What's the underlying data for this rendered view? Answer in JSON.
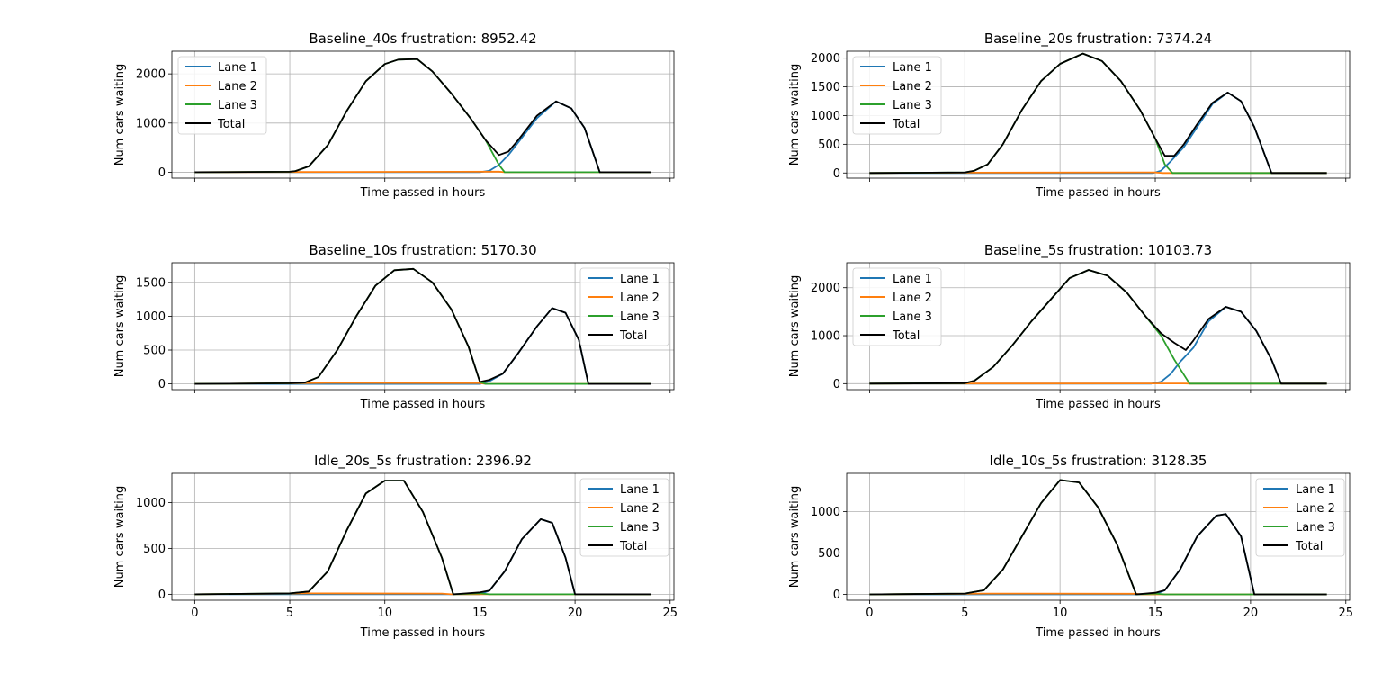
{
  "chart_data": [
    {
      "type": "line",
      "title": "Baseline_40s frustration: 8952.42",
      "xlabel": "Time passed in hours",
      "ylabel": "Num cars waiting",
      "xlim": [
        -1.2,
        25.2
      ],
      "ylim": [
        -120,
        2460
      ],
      "x_ticks": [
        0,
        5,
        10,
        15,
        20,
        25
      ],
      "y_ticks": [
        0,
        1000,
        2000
      ],
      "y_tick_labels": [
        "0",
        "1000",
        "2000"
      ],
      "show_x_tick_labels": false,
      "grid": true,
      "legend_position": "upper left",
      "series": [
        {
          "name": "Lane 1",
          "color": "#1f77b4",
          "x": [
            0,
            15,
            15.5,
            16,
            16.5,
            17,
            18,
            19,
            19.8,
            20.5,
            21.3,
            24
          ],
          "y": [
            0,
            0,
            30,
            150,
            350,
            600,
            1100,
            1440,
            1300,
            900,
            0,
            0
          ]
        },
        {
          "name": "Lane 2",
          "color": "#ff7f0e",
          "x": [
            0,
            5,
            16,
            16.3,
            24
          ],
          "y": [
            0,
            5,
            12,
            0,
            0
          ]
        },
        {
          "name": "Lane 3",
          "color": "#2ca02c",
          "x": [
            0,
            5,
            5.3,
            6,
            7,
            8,
            9,
            10,
            10.7,
            11.7,
            12.5,
            13.5,
            14.5,
            15.3,
            16,
            16.3,
            24
          ],
          "y": [
            0,
            10,
            25,
            120,
            550,
            1250,
            1850,
            2200,
            2290,
            2300,
            2050,
            1600,
            1100,
            650,
            150,
            0,
            0
          ]
        },
        {
          "name": "Total",
          "color": "#000000",
          "x": [
            0,
            5,
            5.3,
            6,
            7,
            8,
            9,
            10,
            10.7,
            11.7,
            12.5,
            13.5,
            14.5,
            15.3,
            16,
            16.5,
            17,
            18,
            19,
            19.8,
            20.5,
            21.3,
            24
          ],
          "y": [
            0,
            10,
            25,
            120,
            550,
            1250,
            1850,
            2200,
            2290,
            2300,
            2050,
            1600,
            1100,
            650,
            350,
            420,
            650,
            1150,
            1440,
            1300,
            900,
            0,
            0
          ]
        }
      ]
    },
    {
      "type": "line",
      "title": "Baseline_20s frustration: 7374.24",
      "xlabel": "Time passed in hours",
      "ylabel": "Num cars waiting",
      "xlim": [
        -1.2,
        25.2
      ],
      "ylim": [
        -90,
        2120
      ],
      "x_ticks": [
        0,
        5,
        10,
        15,
        20,
        25
      ],
      "y_ticks": [
        0,
        500,
        1000,
        1500,
        2000
      ],
      "y_tick_labels": [
        "0",
        "500",
        "1000",
        "1500",
        "2000"
      ],
      "show_x_tick_labels": false,
      "grid": true,
      "legend_position": "upper left",
      "series": [
        {
          "name": "Lane 1",
          "color": "#1f77b4",
          "x": [
            0,
            14.9,
            15.3,
            15.8,
            16.5,
            17.2,
            18,
            18.8,
            19.5,
            20.2,
            21.1,
            24
          ],
          "y": [
            0,
            0,
            40,
            200,
            450,
            800,
            1200,
            1400,
            1250,
            800,
            0,
            0
          ]
        },
        {
          "name": "Lane 2",
          "color": "#ff7f0e",
          "x": [
            0,
            5,
            15,
            15.4,
            24
          ],
          "y": [
            0,
            5,
            10,
            0,
            0
          ]
        },
        {
          "name": "Lane 3",
          "color": "#2ca02c",
          "x": [
            0,
            5,
            5.5,
            6.2,
            7,
            8,
            9,
            10,
            11.2,
            12.2,
            13.2,
            14.2,
            15,
            15.5,
            15.9,
            24
          ],
          "y": [
            0,
            10,
            40,
            150,
            500,
            1100,
            1600,
            1900,
            2080,
            1950,
            1600,
            1100,
            600,
            150,
            0,
            0
          ]
        },
        {
          "name": "Total",
          "color": "#000000",
          "x": [
            0,
            5,
            5.5,
            6.2,
            7,
            8,
            9,
            10,
            11.2,
            12.2,
            13.2,
            14.2,
            15,
            15.5,
            16,
            16.5,
            17.2,
            18,
            18.8,
            19.5,
            20.2,
            21.1,
            24
          ],
          "y": [
            0,
            10,
            40,
            150,
            500,
            1100,
            1600,
            1900,
            2080,
            1950,
            1600,
            1100,
            600,
            300,
            300,
            500,
            850,
            1220,
            1400,
            1250,
            800,
            0,
            0
          ]
        }
      ]
    },
    {
      "type": "line",
      "title": "Baseline_10s frustration: 5170.30",
      "xlabel": "Time passed in hours",
      "ylabel": "Num cars waiting",
      "xlim": [
        -1.2,
        25.2
      ],
      "ylim": [
        -85,
        1790
      ],
      "x_ticks": [
        0,
        5,
        10,
        15,
        20,
        25
      ],
      "y_ticks": [
        0,
        500,
        1000,
        1500
      ],
      "y_tick_labels": [
        "0",
        "500",
        "1000",
        "1500"
      ],
      "show_x_tick_labels": false,
      "grid": true,
      "legend_position": "upper right",
      "series": [
        {
          "name": "Lane 1",
          "color": "#1f77b4",
          "x": [
            0,
            15,
            15.5,
            16.2,
            17,
            18,
            18.8,
            19.5,
            20.2,
            20.7,
            24
          ],
          "y": [
            0,
            0,
            40,
            150,
            450,
            850,
            1120,
            1050,
            650,
            0,
            0
          ]
        },
        {
          "name": "Lane 2",
          "color": "#ff7f0e",
          "x": [
            0,
            5,
            7,
            15,
            15.3,
            24
          ],
          "y": [
            0,
            8,
            15,
            12,
            0,
            0
          ]
        },
        {
          "name": "Lane 3",
          "color": "#2ca02c",
          "x": [
            0,
            5,
            5.8,
            6.5,
            7.5,
            8.5,
            9.5,
            10.5,
            11.5,
            12.5,
            13.5,
            14.4,
            15,
            15.3,
            24
          ],
          "y": [
            0,
            10,
            20,
            100,
            500,
            1000,
            1450,
            1680,
            1700,
            1500,
            1100,
            550,
            30,
            0,
            0
          ]
        },
        {
          "name": "Total",
          "color": "#000000",
          "x": [
            0,
            5,
            5.8,
            6.5,
            7.5,
            8.5,
            9.5,
            10.5,
            11.5,
            12.5,
            13.5,
            14.4,
            15,
            15.5,
            16.2,
            17,
            18,
            18.8,
            19.5,
            20.2,
            20.7,
            24
          ],
          "y": [
            0,
            10,
            20,
            100,
            500,
            1000,
            1450,
            1680,
            1700,
            1500,
            1100,
            550,
            30,
            60,
            150,
            450,
            850,
            1120,
            1050,
            650,
            0,
            0
          ]
        }
      ]
    },
    {
      "type": "line",
      "title": "Baseline_5s frustration: 10103.73",
      "xlabel": "Time passed in hours",
      "ylabel": "Num cars waiting",
      "xlim": [
        -1.2,
        25.2
      ],
      "ylim": [
        -125,
        2520
      ],
      "x_ticks": [
        0,
        5,
        10,
        15,
        20,
        25
      ],
      "y_ticks": [
        0,
        1000,
        2000
      ],
      "y_tick_labels": [
        "0",
        "1000",
        "2000"
      ],
      "show_x_tick_labels": false,
      "grid": true,
      "legend_position": "upper left",
      "series": [
        {
          "name": "Lane 1",
          "color": "#1f77b4",
          "x": [
            0,
            14.8,
            15.3,
            15.8,
            16.3,
            17,
            17.8,
            18.7,
            19.5,
            20.3,
            21.1,
            21.6,
            24
          ],
          "y": [
            0,
            0,
            40,
            200,
            450,
            750,
            1300,
            1600,
            1500,
            1100,
            500,
            0,
            0
          ]
        },
        {
          "name": "Lane 2",
          "color": "#ff7f0e",
          "x": [
            0,
            5,
            15,
            16.5,
            16.9,
            24
          ],
          "y": [
            0,
            3,
            5,
            5,
            0,
            0
          ]
        },
        {
          "name": "Lane 3",
          "color": "#2ca02c",
          "x": [
            0,
            5,
            5.5,
            6.5,
            7.5,
            8.5,
            9.5,
            10.5,
            11.5,
            12.5,
            13.5,
            14.5,
            15.3,
            16,
            16.8,
            24
          ],
          "y": [
            0,
            10,
            60,
            350,
            800,
            1300,
            1750,
            2200,
            2370,
            2250,
            1900,
            1400,
            1000,
            500,
            0,
            0
          ]
        },
        {
          "name": "Total",
          "color": "#000000",
          "x": [
            0,
            5,
            5.5,
            6.5,
            7.5,
            8.5,
            9.5,
            10.5,
            11.5,
            12.5,
            13.5,
            14.5,
            15.3,
            16,
            16.6,
            17,
            17.8,
            18.7,
            19.5,
            20.3,
            21.1,
            21.6,
            24
          ],
          "y": [
            0,
            10,
            60,
            350,
            800,
            1300,
            1750,
            2200,
            2370,
            2250,
            1900,
            1400,
            1050,
            850,
            700,
            900,
            1350,
            1600,
            1500,
            1100,
            500,
            0,
            0
          ]
        }
      ]
    },
    {
      "type": "line",
      "title": "Idle_20s_5s frustration: 2396.92",
      "xlabel": "Time passed in hours",
      "ylabel": "Num cars waiting",
      "xlim": [
        -1.2,
        25.2
      ],
      "ylim": [
        -65,
        1320
      ],
      "x_ticks": [
        0,
        5,
        10,
        15,
        20,
        25
      ],
      "x_tick_labels": [
        "0",
        "5",
        "10",
        "15",
        "20",
        "25"
      ],
      "y_ticks": [
        0,
        500,
        1000
      ],
      "y_tick_labels": [
        "0",
        "500",
        "1000"
      ],
      "show_x_tick_labels": true,
      "grid": true,
      "legend_position": "upper right",
      "series": [
        {
          "name": "Lane 1",
          "color": "#1f77b4",
          "x": [
            0,
            15,
            15.5,
            16.3,
            17.2,
            18.2,
            18.8,
            19.5,
            20,
            24
          ],
          "y": [
            0,
            0,
            40,
            250,
            600,
            820,
            780,
            400,
            0,
            0
          ]
        },
        {
          "name": "Lane 2",
          "color": "#ff7f0e",
          "x": [
            0,
            5,
            6,
            13,
            13.5,
            24
          ],
          "y": [
            0,
            8,
            10,
            8,
            0,
            0
          ]
        },
        {
          "name": "Lane 3",
          "color": "#2ca02c",
          "x": [
            0,
            5,
            6,
            7,
            8,
            9,
            10,
            11,
            12,
            13,
            13.6,
            15,
            15.5,
            24
          ],
          "y": [
            0,
            10,
            30,
            250,
            700,
            1100,
            1240,
            1240,
            900,
            400,
            0,
            10,
            0,
            0
          ]
        },
        {
          "name": "Total",
          "color": "#000000",
          "x": [
            0,
            5,
            6,
            7,
            8,
            9,
            10,
            11,
            12,
            13,
            13.6,
            15,
            15.5,
            16.3,
            17.2,
            18.2,
            18.8,
            19.5,
            20,
            24
          ],
          "y": [
            0,
            10,
            30,
            250,
            700,
            1100,
            1240,
            1240,
            900,
            400,
            0,
            20,
            40,
            250,
            600,
            820,
            780,
            400,
            0,
            0
          ]
        }
      ]
    },
    {
      "type": "line",
      "title": "Idle_10s_5s frustration: 3128.35",
      "xlabel": "Time passed in hours",
      "ylabel": "Num cars waiting",
      "xlim": [
        -1.2,
        25.2
      ],
      "ylim": [
        -70,
        1460
      ],
      "x_ticks": [
        0,
        5,
        10,
        15,
        20,
        25
      ],
      "x_tick_labels": [
        "0",
        "5",
        "10",
        "15",
        "20",
        "25"
      ],
      "y_ticks": [
        0,
        500,
        1000
      ],
      "y_tick_labels": [
        "0",
        "500",
        "1000"
      ],
      "show_x_tick_labels": true,
      "grid": true,
      "legend_position": "upper right",
      "series": [
        {
          "name": "Lane 1",
          "color": "#1f77b4",
          "x": [
            0,
            15,
            15.5,
            16.3,
            17.2,
            18.2,
            18.7,
            19.5,
            20.2,
            24
          ],
          "y": [
            0,
            0,
            50,
            300,
            700,
            950,
            970,
            700,
            0,
            0
          ]
        },
        {
          "name": "Lane 2",
          "color": "#ff7f0e",
          "x": [
            0,
            5,
            6,
            14,
            14.3,
            24
          ],
          "y": [
            0,
            8,
            10,
            8,
            0,
            0
          ]
        },
        {
          "name": "Lane 3",
          "color": "#2ca02c",
          "x": [
            0,
            5,
            6,
            7,
            8,
            9,
            10,
            11,
            12,
            13,
            14,
            15,
            15.5,
            24
          ],
          "y": [
            0,
            10,
            50,
            300,
            700,
            1100,
            1380,
            1350,
            1050,
            600,
            0,
            10,
            0,
            0
          ]
        },
        {
          "name": "Total",
          "color": "#000000",
          "x": [
            0,
            5,
            6,
            7,
            8,
            9,
            10,
            11,
            12,
            13,
            14,
            15,
            15.5,
            16.3,
            17.2,
            18.2,
            18.7,
            19.5,
            20.2,
            24
          ],
          "y": [
            0,
            10,
            50,
            300,
            700,
            1100,
            1380,
            1350,
            1050,
            600,
            0,
            20,
            50,
            300,
            700,
            950,
            970,
            700,
            0,
            0
          ]
        }
      ]
    }
  ]
}
